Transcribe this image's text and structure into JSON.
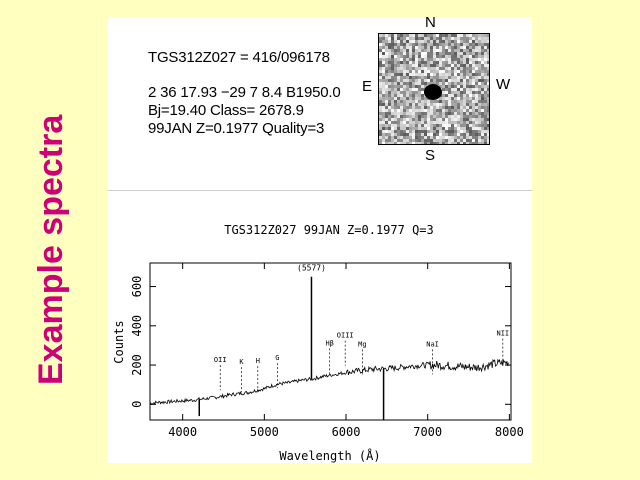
{
  "side_title": "Example spectra",
  "object": {
    "name_line": "TGS312Z027 = 416/096178",
    "coord_line": "2 36 17.93 −29 7 8.4 B1950.0",
    "mag_line": "Bj=19.40 Class= 2678.9",
    "z_line": "99JAN Z=0.1977 Quality=3"
  },
  "compass": {
    "n": "N",
    "s": "S",
    "e": "E",
    "w": "W"
  },
  "colors": {
    "background": "#ffffc0",
    "title": "#cc0077",
    "panel": "#ffffff"
  },
  "chart_data": {
    "type": "line",
    "title": "TGS312Z027 99JAN Z=0.1977 Q=3",
    "xlabel": "Wavelength (Å)",
    "ylabel": "Counts",
    "xlim": [
      3600,
      8020
    ],
    "ylim": [
      -80,
      720
    ],
    "xticks": [
      4000,
      5000,
      6000,
      7000,
      8000
    ],
    "yticks": [
      0,
      200,
      400,
      600
    ],
    "grid": false,
    "series": [
      {
        "x": [
          3600,
          3700,
          3800,
          3900,
          4000,
          4100,
          4200,
          4300,
          4400,
          4500,
          4600,
          4700,
          4800,
          4900,
          5000,
          5100,
          5200,
          5300,
          5400,
          5500,
          5600,
          5700,
          5800,
          5900,
          6000,
          6100,
          6200,
          6300,
          6400,
          6500,
          6600,
          6700,
          6800,
          6900,
          7000,
          7100,
          7200,
          7300,
          7400,
          7500,
          7600,
          7700,
          7800,
          7900,
          8000
        ],
        "values": [
          5,
          10,
          12,
          15,
          18,
          20,
          25,
          30,
          35,
          42,
          50,
          55,
          60,
          70,
          80,
          95,
          105,
          110,
          118,
          125,
          130,
          140,
          148,
          155,
          162,
          168,
          172,
          178,
          180,
          182,
          185,
          190,
          195,
          198,
          200,
          200,
          198,
          195,
          192,
          190,
          188,
          195,
          205,
          210,
          215
        ]
      }
    ],
    "features": [
      {
        "label": "(5577)",
        "wavelength": 5577,
        "kind": "sky-emission",
        "peak": 650
      },
      {
        "label": "",
        "wavelength": 4203,
        "kind": "spike",
        "peak": -60
      },
      {
        "label": "",
        "wavelength": 6460,
        "kind": "absorption",
        "peak": -80
      }
    ],
    "line_labels": [
      {
        "text": "OII",
        "x": 4460,
        "y": 215
      },
      {
        "text": "K",
        "x": 4720,
        "y": 205
      },
      {
        "text": "H",
        "x": 4920,
        "y": 210
      },
      {
        "text": "G",
        "x": 5160,
        "y": 225
      },
      {
        "text": "Hβ",
        "x": 5800,
        "y": 300
      },
      {
        "text": "OIII",
        "x": 5990,
        "y": 340
      },
      {
        "text": "Mg",
        "x": 6200,
        "y": 295
      },
      {
        "text": "NaI",
        "x": 7060,
        "y": 295
      },
      {
        "text": "NII",
        "x": 7920,
        "y": 350
      }
    ]
  }
}
